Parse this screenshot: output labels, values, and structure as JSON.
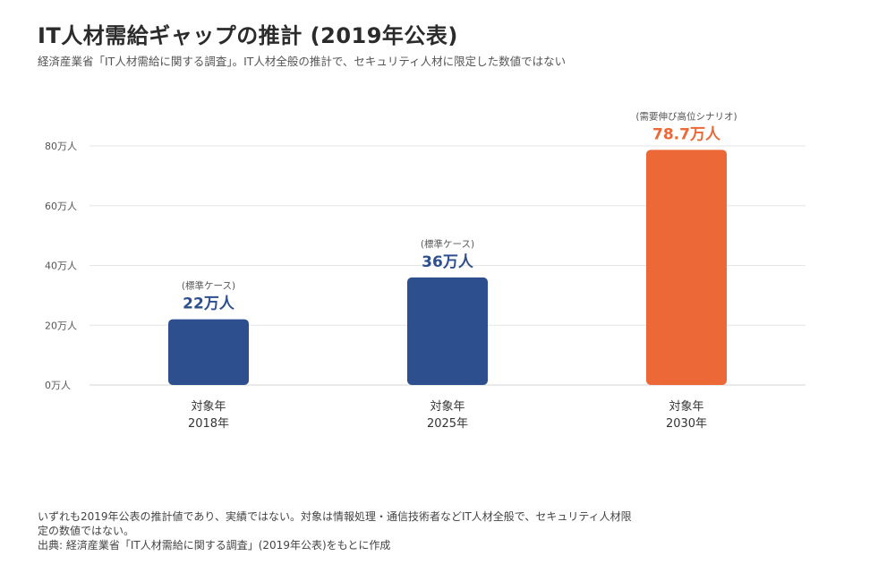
{
  "title": "IT人材需給ギャップの推計 (2019年公表)",
  "subtitle": "経済産業省「IT人材需給に関する調査」。IT人材全般の推計で、セキュリティ人材に限定した数値ではない",
  "chart_data": {
    "type": "bar",
    "categories": [
      [
        "対象年",
        "2018年"
      ],
      [
        "対象年",
        "2025年"
      ],
      [
        "対象年",
        "2030年"
      ]
    ],
    "values": [
      22,
      36,
      78.7
    ],
    "value_labels": [
      "22万人",
      "36万人",
      "78.7万人"
    ],
    "scenario_labels": [
      "(標準ケース)",
      "(標準ケース)",
      "(需要伸び高位シナリオ)"
    ],
    "bar_colors": [
      "#2d4f8e",
      "#2d4f8e",
      "#ec6837"
    ],
    "label_colors": [
      "#2d4f8e",
      "#2d4f8e",
      "#ec6837"
    ],
    "y_ticks": [
      0,
      20,
      40,
      60,
      80
    ],
    "y_tick_labels": [
      "0万人",
      "20万人",
      "40万人",
      "60万人",
      "80万人"
    ],
    "ylim": [
      0,
      80
    ],
    "grid": true,
    "xlabel": "",
    "ylabel": ""
  },
  "footnote": {
    "line1": "いずれも2019年公表の推計値であり、実績ではない。対象は情報処理・通信技術者などIT人材全般で、セキュリティ人材限",
    "line2": "定の数値ではない。",
    "line3": "出典: 経済産業省「IT人材需給に関する調査」(2019年公表)をもとに作成"
  }
}
